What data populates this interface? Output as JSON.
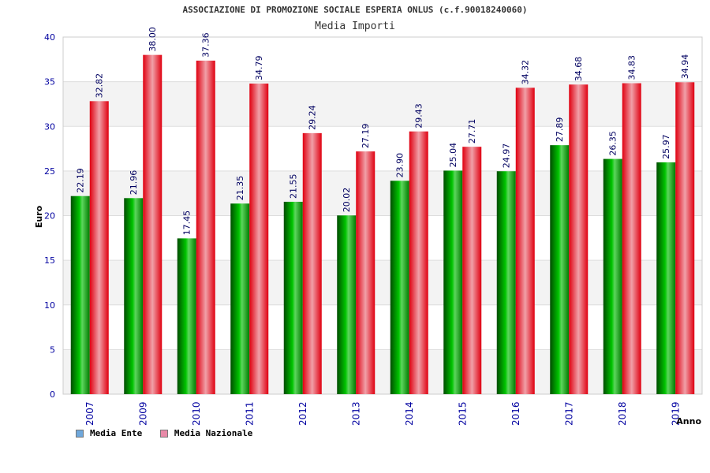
{
  "header": {
    "title": "ASSOCIAZIONE DI PROMOZIONE SOCIALE ESPERIA ONLUS (c.f.90018240060)",
    "subtitle": "Media Importi"
  },
  "legend": {
    "items": [
      {
        "label": "Media Ente",
        "color": "#6fa8dc"
      },
      {
        "label": "Media Nazionale",
        "color": "#e88aa8"
      }
    ]
  },
  "colors": {
    "green": "#00a000",
    "red": "#e8101a",
    "axis_text": "#0000a0",
    "label_text": "#000060"
  },
  "chart_data": {
    "type": "bar",
    "title": "ASSOCIAZIONE DI PROMOZIONE SOCIALE ESPERIA ONLUS (c.f.90018240060)",
    "subtitle": "Media Importi",
    "xlabel": "Anno",
    "ylabel": "Euro",
    "ylim": [
      0,
      40
    ],
    "yticks": [
      0,
      5,
      10,
      15,
      20,
      25,
      30,
      35,
      40
    ],
    "grid": true,
    "legend_position": "bottom-left",
    "categories": [
      "2007",
      "2009",
      "2010",
      "2011",
      "2012",
      "2013",
      "2014",
      "2015",
      "2016",
      "2017",
      "2018",
      "2019"
    ],
    "series": [
      {
        "name": "Media Ente",
        "color": "green",
        "values": [
          22.19,
          21.96,
          17.45,
          21.35,
          21.55,
          20.02,
          23.9,
          25.04,
          24.97,
          27.89,
          26.35,
          25.97
        ],
        "labels": [
          "22.19",
          "21.96",
          "17.45",
          "21.35",
          "21.55",
          "20.02",
          "23.90",
          "25.04",
          "24.97",
          "27.89",
          "26.35",
          "25.97"
        ]
      },
      {
        "name": "Media Nazionale",
        "color": "red",
        "values": [
          32.82,
          38.0,
          37.36,
          34.79,
          29.24,
          27.19,
          29.43,
          27.71,
          34.32,
          34.68,
          34.83,
          34.94
        ],
        "labels": [
          "32.82",
          "38.00",
          "37.36",
          "34.79",
          "29.24",
          "27.19",
          "29.43",
          "27.71",
          "34.32",
          "34.68",
          "34.83",
          "34.94"
        ]
      }
    ]
  }
}
